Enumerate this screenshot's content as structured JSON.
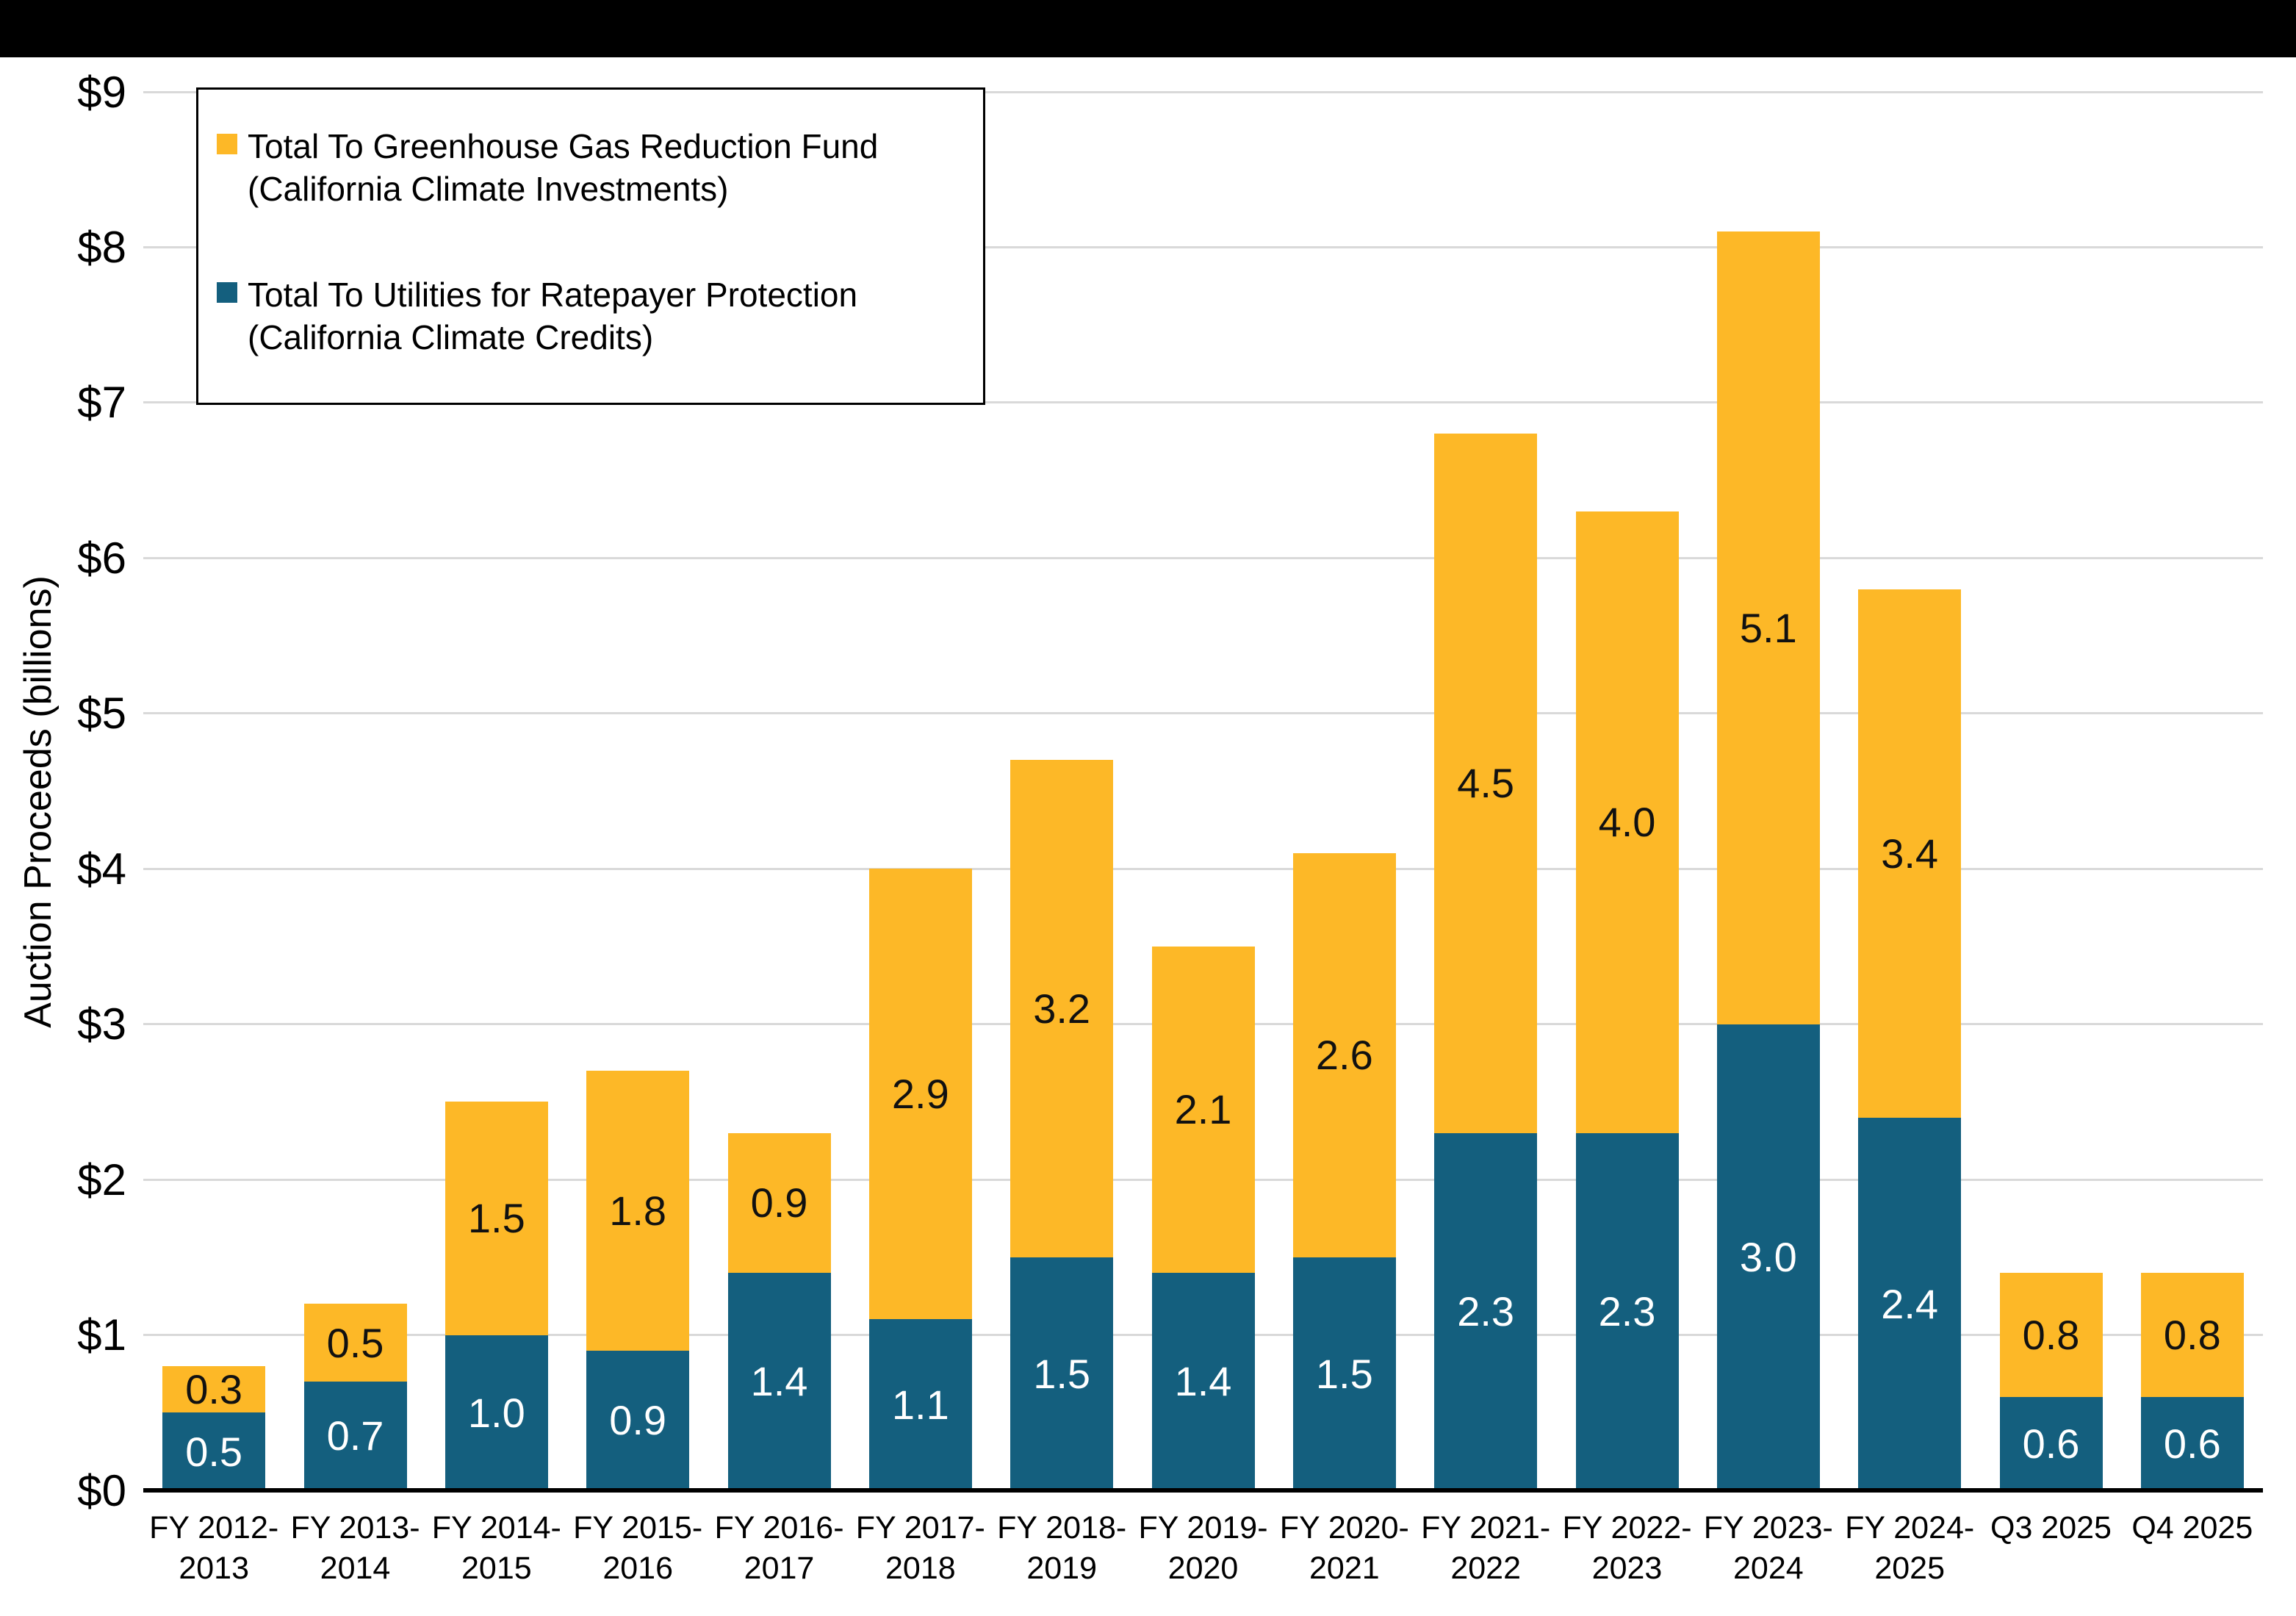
{
  "page": {
    "background_color": "#FFFFFF",
    "topbar_color": "#000000"
  },
  "chart_data": {
    "type": "bar",
    "stacked": true,
    "title": "",
    "ylabel": "Auction Proceeds (billions)",
    "xlabel": "",
    "ylim": [
      0,
      9
    ],
    "ytick_labels": [
      "$0",
      "$1",
      "$2",
      "$3",
      "$4",
      "$5",
      "$6",
      "$7",
      "$8",
      "$9"
    ],
    "grid": "horizontal",
    "grid_color": "#D9D9D9",
    "axis_color": "#000000",
    "legend_position": "top-left",
    "categories": [
      "FY 2012-2013",
      "FY 2013-2014",
      "FY 2014-2015",
      "FY 2015-2016",
      "FY 2016-2017",
      "FY 2017-2018",
      "FY 2018-2019",
      "FY 2019-2020",
      "FY 2020-2021",
      "FY 2021-2022",
      "FY 2022-2023",
      "FY 2023-2024",
      "FY 2024-2025",
      "Q3 2025",
      "Q4 2025"
    ],
    "category_tick_lines": [
      [
        "FY 2012-",
        "2013"
      ],
      [
        "FY 2013-",
        "2014"
      ],
      [
        "FY 2014-",
        "2015"
      ],
      [
        "FY 2015-",
        "2016"
      ],
      [
        "FY 2016-",
        "2017"
      ],
      [
        "FY 2017-",
        "2018"
      ],
      [
        "FY 2018-",
        "2019"
      ],
      [
        "FY 2019-",
        "2020"
      ],
      [
        "FY 2020-",
        "2021"
      ],
      [
        "FY 2021-",
        "2022"
      ],
      [
        "FY 2022-",
        "2023"
      ],
      [
        "FY 2023-",
        "2024"
      ],
      [
        "FY 2024-",
        "2025"
      ],
      [
        "Q3 2025"
      ],
      [
        "Q4 2025"
      ]
    ],
    "series": [
      {
        "name": "Total To Utilities for Ratepayer Protection (California Climate Credits)",
        "legend_lines": [
          "Total To Utilities for Ratepayer Protection",
          "(California Climate Credits)"
        ],
        "color": "#145F7E",
        "label_color": "#FFFFFF",
        "values": [
          0.5,
          0.7,
          1.0,
          0.9,
          1.4,
          1.1,
          1.5,
          1.4,
          1.5,
          2.3,
          2.3,
          3.0,
          2.4,
          0.6,
          0.6
        ]
      },
      {
        "name": "Total To Greenhouse Gas Reduction Fund (California Climate Investments)",
        "legend_lines": [
          "Total To Greenhouse Gas Reduction Fund",
          "(California Climate Investments)"
        ],
        "color": "#FDB827",
        "label_color": "#111111",
        "values": [
          0.3,
          0.5,
          1.5,
          1.8,
          0.9,
          2.9,
          3.2,
          2.1,
          2.6,
          4.5,
          4.0,
          5.1,
          3.4,
          0.8,
          0.8
        ]
      }
    ],
    "value_label_decimals": 1
  }
}
